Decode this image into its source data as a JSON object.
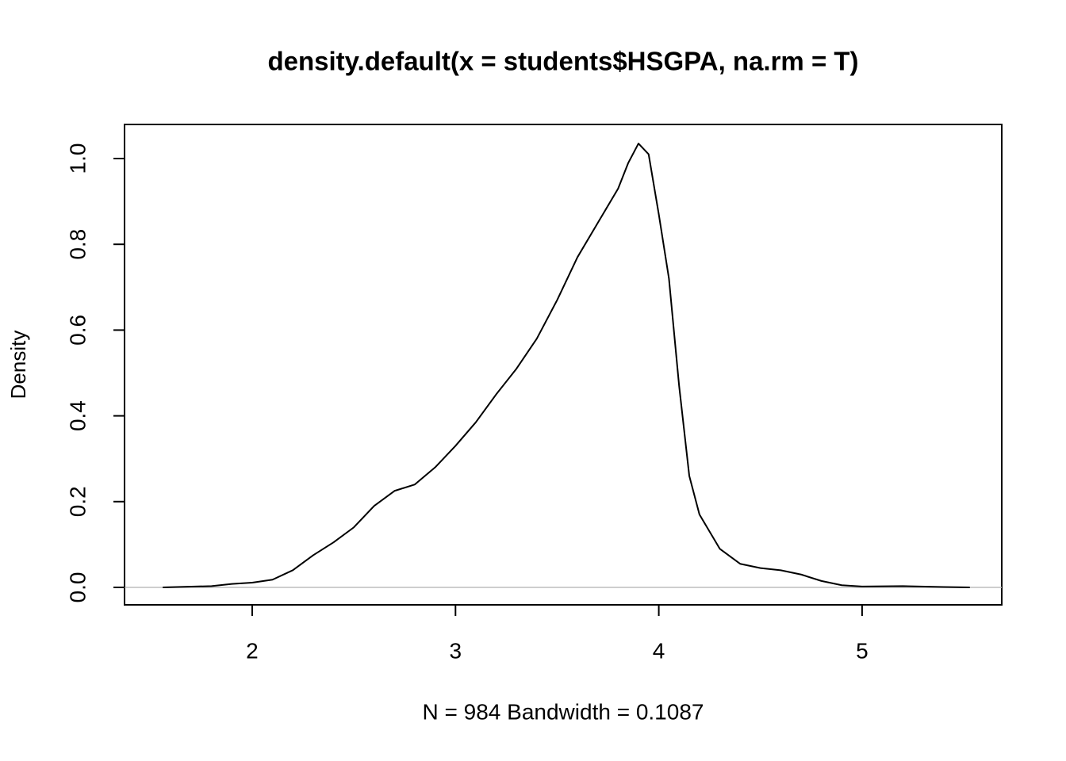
{
  "chart_data": {
    "type": "line",
    "title": "density.default(x = students$HSGPA, na.rm = T)",
    "xlabel": "N = 984   Bandwidth = 0.1087",
    "ylabel": "Density",
    "x": [
      1.56,
      1.8,
      1.9,
      2.0,
      2.1,
      2.2,
      2.3,
      2.4,
      2.5,
      2.6,
      2.7,
      2.8,
      2.9,
      3.0,
      3.1,
      3.2,
      3.3,
      3.4,
      3.5,
      3.6,
      3.7,
      3.8,
      3.85,
      3.9,
      3.95,
      4.0,
      4.05,
      4.1,
      4.15,
      4.2,
      4.3,
      4.4,
      4.5,
      4.6,
      4.7,
      4.8,
      4.9,
      5.0,
      5.2,
      5.4,
      5.53
    ],
    "series": [
      {
        "color": "#000000",
        "values": [
          0,
          0.003,
          0.008,
          0.011,
          0.018,
          0.04,
          0.075,
          0.105,
          0.14,
          0.19,
          0.225,
          0.24,
          0.28,
          0.33,
          0.385,
          0.45,
          0.51,
          0.58,
          0.67,
          0.77,
          0.85,
          0.93,
          0.99,
          1.035,
          1.01,
          0.87,
          0.72,
          0.47,
          0.26,
          0.17,
          0.09,
          0.055,
          0.045,
          0.04,
          0.03,
          0.015,
          0.005,
          0.002,
          0.003,
          0.001,
          0
        ]
      }
    ],
    "xlim": [
      1.372,
      5.687
    ],
    "ylim": [
      -0.0407,
      1.0795
    ],
    "xticks": [
      2,
      3,
      4,
      5
    ],
    "yticks": [
      {
        "value": 0,
        "label": "0.0"
      },
      {
        "value": 0.2,
        "label": "0.2"
      },
      {
        "value": 0.4,
        "label": "0.4"
      },
      {
        "value": 0.6,
        "label": "0.6"
      },
      {
        "value": 0.8,
        "label": "0.8"
      },
      {
        "value": 1,
        "label": "1.0"
      }
    ],
    "zero_line": true,
    "zero_line_color": "#bebebe",
    "grid": false
  }
}
